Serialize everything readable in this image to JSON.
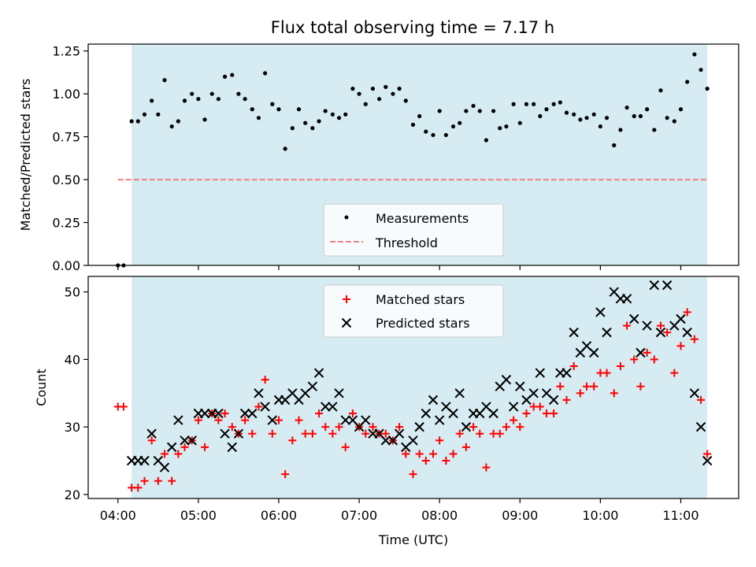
{
  "title": "Flux total observing time = 7.17 h",
  "colors": {
    "background_band": "#add8e6",
    "threshold": "#f08080",
    "measurement": "#000000",
    "matched": "#ff0000",
    "predicted": "#000000"
  },
  "chart_data": [
    {
      "type": "scatter",
      "ylabel": "Matched/Predicted stars",
      "ylim": [
        0,
        1.29
      ],
      "yticks": [
        "0.00",
        "0.25",
        "0.50",
        "0.75",
        "1.00",
        "1.25"
      ],
      "ytick_values": [
        0,
        0.25,
        0.5,
        0.75,
        1.0,
        1.25
      ],
      "x_range_hours": [
        3.63,
        11.72
      ],
      "observing_band_hours": [
        4.17,
        11.33
      ],
      "threshold": 0.5,
      "threshold_x_hours": [
        4.0,
        11.33
      ],
      "legend": {
        "position": "lower-center",
        "entries": [
          "Measurements",
          "Threshold"
        ]
      },
      "series": [
        {
          "name": "Measurements",
          "x_hours": [
            4.0,
            4.07,
            4.17,
            4.25,
            4.33,
            4.42,
            4.5,
            4.58,
            4.67,
            4.75,
            4.83,
            4.92,
            5.0,
            5.08,
            5.17,
            5.25,
            5.33,
            5.42,
            5.5,
            5.58,
            5.67,
            5.75,
            5.83,
            5.92,
            6.0,
            6.08,
            6.17,
            6.25,
            6.33,
            6.42,
            6.5,
            6.58,
            6.67,
            6.75,
            6.83,
            6.92,
            7.0,
            7.08,
            7.17,
            7.25,
            7.33,
            7.42,
            7.5,
            7.58,
            7.67,
            7.75,
            7.83,
            7.92,
            8.0,
            8.08,
            8.17,
            8.25,
            8.33,
            8.42,
            8.5,
            8.58,
            8.67,
            8.75,
            8.83,
            8.92,
            9.0,
            9.08,
            9.17,
            9.25,
            9.33,
            9.42,
            9.5,
            9.58,
            9.67,
            9.75,
            9.83,
            9.92,
            10.0,
            10.08,
            10.17,
            10.25,
            10.33,
            10.42,
            10.5,
            10.58,
            10.67,
            10.75,
            10.83,
            10.92,
            11.0,
            11.08,
            11.17,
            11.25,
            11.33
          ],
          "y": [
            0.0,
            0.0,
            0.84,
            0.84,
            0.88,
            0.96,
            0.88,
            1.08,
            0.81,
            0.84,
            0.96,
            1.0,
            0.97,
            0.85,
            1.0,
            0.97,
            1.1,
            1.11,
            1.0,
            0.97,
            0.91,
            0.86,
            1.12,
            0.94,
            0.91,
            0.68,
            0.8,
            0.91,
            0.83,
            0.8,
            0.84,
            0.9,
            0.88,
            0.86,
            0.88,
            1.03,
            1.0,
            0.94,
            1.03,
            0.97,
            1.04,
            1.0,
            1.03,
            0.96,
            0.82,
            0.87,
            0.78,
            0.76,
            0.9,
            0.76,
            0.81,
            0.83,
            0.9,
            0.93,
            0.9,
            0.73,
            0.9,
            0.8,
            0.81,
            0.94,
            0.83,
            0.94,
            0.94,
            0.87,
            0.91,
            0.94,
            0.95,
            0.89,
            0.88,
            0.85,
            0.86,
            0.88,
            0.81,
            0.86,
            0.7,
            0.79,
            0.92,
            0.87,
            0.87,
            0.91,
            0.79,
            1.02,
            0.86,
            0.84,
            0.91,
            1.07,
            1.23,
            1.14,
            1.03
          ]
        }
      ]
    },
    {
      "type": "scatter",
      "xlabel": "Time (UTC)",
      "ylabel": "Count",
      "ylim": [
        19.4,
        52.3
      ],
      "yticks": [
        "20",
        "30",
        "40",
        "50"
      ],
      "ytick_values": [
        20,
        30,
        40,
        50
      ],
      "xticks": [
        "04:00",
        "05:00",
        "06:00",
        "07:00",
        "08:00",
        "09:00",
        "10:00",
        "11:00"
      ],
      "xtick_values_hours": [
        4,
        5,
        6,
        7,
        8,
        9,
        10,
        11
      ],
      "x_range_hours": [
        3.63,
        11.72
      ],
      "observing_band_hours": [
        4.17,
        11.33
      ],
      "legend": {
        "position": "top-center",
        "entries": [
          "Matched stars",
          "Predicted stars"
        ]
      },
      "series": [
        {
          "name": "Matched stars",
          "x_hours": [
            4.0,
            4.07,
            4.17,
            4.25,
            4.33,
            4.42,
            4.5,
            4.58,
            4.67,
            4.75,
            4.83,
            4.92,
            5.0,
            5.08,
            5.17,
            5.25,
            5.33,
            5.42,
            5.5,
            5.58,
            5.67,
            5.75,
            5.83,
            5.92,
            6.0,
            6.08,
            6.17,
            6.25,
            6.33,
            6.42,
            6.5,
            6.58,
            6.67,
            6.75,
            6.83,
            6.92,
            7.0,
            7.08,
            7.17,
            7.25,
            7.33,
            7.42,
            7.5,
            7.58,
            7.67,
            7.75,
            7.83,
            7.92,
            8.0,
            8.08,
            8.17,
            8.25,
            8.33,
            8.42,
            8.5,
            8.58,
            8.67,
            8.75,
            8.83,
            8.92,
            9.0,
            9.08,
            9.17,
            9.25,
            9.33,
            9.42,
            9.5,
            9.58,
            9.67,
            9.75,
            9.83,
            9.92,
            10.0,
            10.08,
            10.17,
            10.25,
            10.33,
            10.42,
            10.5,
            10.58,
            10.67,
            10.75,
            10.83,
            10.92,
            11.0,
            11.08,
            11.17,
            11.25,
            11.33
          ],
          "y": [
            33,
            33,
            21,
            21,
            22,
            28,
            22,
            26,
            22,
            26,
            27,
            28,
            31,
            27,
            32,
            31,
            32,
            30,
            29,
            31,
            29,
            33,
            37,
            29,
            31,
            23,
            28,
            31,
            29,
            29,
            32,
            30,
            29,
            30,
            27,
            32,
            30,
            29,
            30,
            29,
            29,
            28,
            30,
            26,
            23,
            26,
            25,
            26,
            28,
            25,
            26,
            29,
            27,
            30,
            29,
            24,
            29,
            29,
            30,
            31,
            30,
            32,
            33,
            33,
            32,
            32,
            36,
            34,
            39,
            35,
            36,
            36,
            38,
            38,
            35,
            39,
            45,
            40,
            36,
            41,
            40,
            45,
            44,
            38,
            42,
            47,
            43,
            34,
            26
          ]
        },
        {
          "name": "Predicted stars",
          "x_hours": [
            4.17,
            4.25,
            4.33,
            4.42,
            4.5,
            4.58,
            4.67,
            4.75,
            4.83,
            4.92,
            5.0,
            5.08,
            5.17,
            5.25,
            5.33,
            5.42,
            5.5,
            5.58,
            5.67,
            5.75,
            5.83,
            5.92,
            6.0,
            6.08,
            6.17,
            6.25,
            6.33,
            6.42,
            6.5,
            6.58,
            6.67,
            6.75,
            6.83,
            6.92,
            7.0,
            7.08,
            7.17,
            7.25,
            7.33,
            7.42,
            7.5,
            7.58,
            7.67,
            7.75,
            7.83,
            7.92,
            8.0,
            8.08,
            8.17,
            8.25,
            8.33,
            8.42,
            8.5,
            8.58,
            8.67,
            8.75,
            8.83,
            8.92,
            9.0,
            9.08,
            9.17,
            9.25,
            9.33,
            9.42,
            9.5,
            9.58,
            9.67,
            9.75,
            9.83,
            9.92,
            10.0,
            10.08,
            10.17,
            10.25,
            10.33,
            10.42,
            10.5,
            10.58,
            10.67,
            10.75,
            10.83,
            10.92,
            11.0,
            11.08,
            11.17,
            11.25,
            11.33
          ],
          "y": [
            25,
            25,
            25,
            29,
            25,
            24,
            27,
            31,
            28,
            28,
            32,
            32,
            32,
            32,
            29,
            27,
            29,
            32,
            32,
            35,
            33,
            31,
            34,
            34,
            35,
            34,
            35,
            36,
            38,
            33,
            33,
            35,
            31,
            31,
            30,
            31,
            29,
            29,
            28,
            28,
            29,
            27,
            28,
            30,
            32,
            34,
            31,
            33,
            32,
            35,
            30,
            32,
            32,
            33,
            32,
            36,
            37,
            33,
            36,
            34,
            35,
            38,
            35,
            34,
            38,
            38,
            44,
            41,
            42,
            41,
            47,
            44,
            50,
            49,
            49,
            46,
            41,
            45,
            51,
            44,
            51,
            45,
            46,
            44,
            35,
            30,
            25
          ]
        }
      ]
    }
  ]
}
